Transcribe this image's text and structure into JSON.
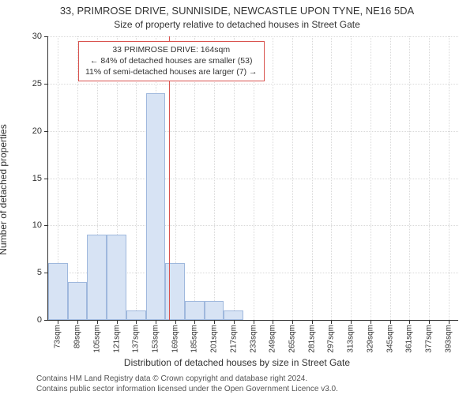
{
  "title_line1": "33, PRIMROSE DRIVE, SUNNISIDE, NEWCASTLE UPON TYNE, NE16 5DA",
  "title_line2": "Size of property relative to detached houses in Street Gate",
  "ylabel": "Number of detached properties",
  "xlabel": "Distribution of detached houses by size in Street Gate",
  "attribution_line1": "Contains HM Land Registry data © Crown copyright and database right 2024.",
  "attribution_line2": "Contains public sector information licensed under the Open Government Licence v3.0.",
  "chart": {
    "type": "histogram",
    "background_color": "#ffffff",
    "grid_color": "#d9d9d9",
    "axis_color": "#333333",
    "text_color": "#333333",
    "bar_fill": "#d7e3f4",
    "bar_stroke": "#9fb8dd",
    "reference_line_color": "#d9534f",
    "callout_border_color": "#d9534f",
    "callout_bg": "#ffffff",
    "font_family": "Arial",
    "title_fontsize": 13,
    "subtitle_fontsize": 12,
    "axis_label_fontsize": 12,
    "tick_fontsize": 11,
    "xtick_fontsize": 10,
    "callout_fontsize": 10.5,
    "xlim": [
      65,
      401
    ],
    "ylim": [
      0,
      30
    ],
    "ytick_step": 5,
    "yticks": [
      0,
      5,
      10,
      15,
      20,
      25,
      30
    ],
    "xticks": [
      73,
      89,
      105,
      121,
      137,
      153,
      169,
      185,
      201,
      217,
      233,
      249,
      265,
      281,
      297,
      313,
      329,
      345,
      361,
      377,
      393
    ],
    "xtick_unit": "sqm",
    "bin_width": 16,
    "bins": [
      {
        "start": 65,
        "count": 6
      },
      {
        "start": 81,
        "count": 4
      },
      {
        "start": 97,
        "count": 9
      },
      {
        "start": 113,
        "count": 9
      },
      {
        "start": 129,
        "count": 1
      },
      {
        "start": 145,
        "count": 24
      },
      {
        "start": 161,
        "count": 6
      },
      {
        "start": 177,
        "count": 2
      },
      {
        "start": 193,
        "count": 2
      },
      {
        "start": 209,
        "count": 1
      },
      {
        "start": 225,
        "count": 0
      },
      {
        "start": 241,
        "count": 0
      },
      {
        "start": 257,
        "count": 0
      },
      {
        "start": 273,
        "count": 0
      },
      {
        "start": 289,
        "count": 0
      },
      {
        "start": 305,
        "count": 0
      },
      {
        "start": 321,
        "count": 0
      },
      {
        "start": 337,
        "count": 0
      },
      {
        "start": 353,
        "count": 0
      },
      {
        "start": 369,
        "count": 0
      },
      {
        "start": 385,
        "count": 0
      }
    ],
    "reference_value_sqm": 164,
    "callout": {
      "line1": "33 PRIMROSE DRIVE: 164sqm",
      "line2": "← 84% of detached houses are smaller (53)",
      "line3": "11% of semi-detached houses are larger (7) →"
    }
  }
}
